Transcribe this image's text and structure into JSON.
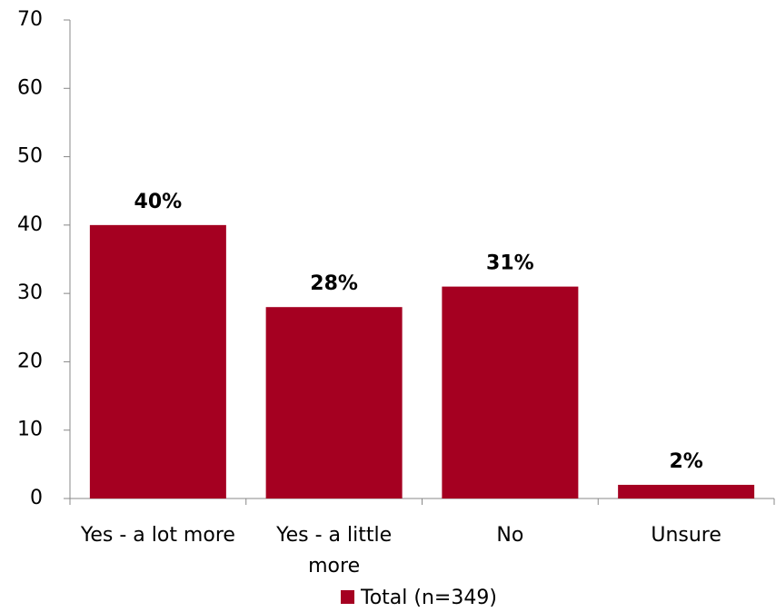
{
  "chart_data": {
    "type": "bar",
    "categories": [
      "Yes - a lot more",
      "Yes - a little more",
      "No",
      "Unsure"
    ],
    "series": [
      {
        "name": "Total (n=349)",
        "color": "#a50021",
        "values": [
          40,
          28,
          31,
          2
        ],
        "value_labels": [
          "40%",
          "28%",
          "31%",
          "2%"
        ]
      }
    ],
    "ylim": [
      0,
      70
    ],
    "yticks": [
      0,
      10,
      20,
      30,
      40,
      50,
      60,
      70
    ],
    "grid": false,
    "legend": "bottom"
  }
}
